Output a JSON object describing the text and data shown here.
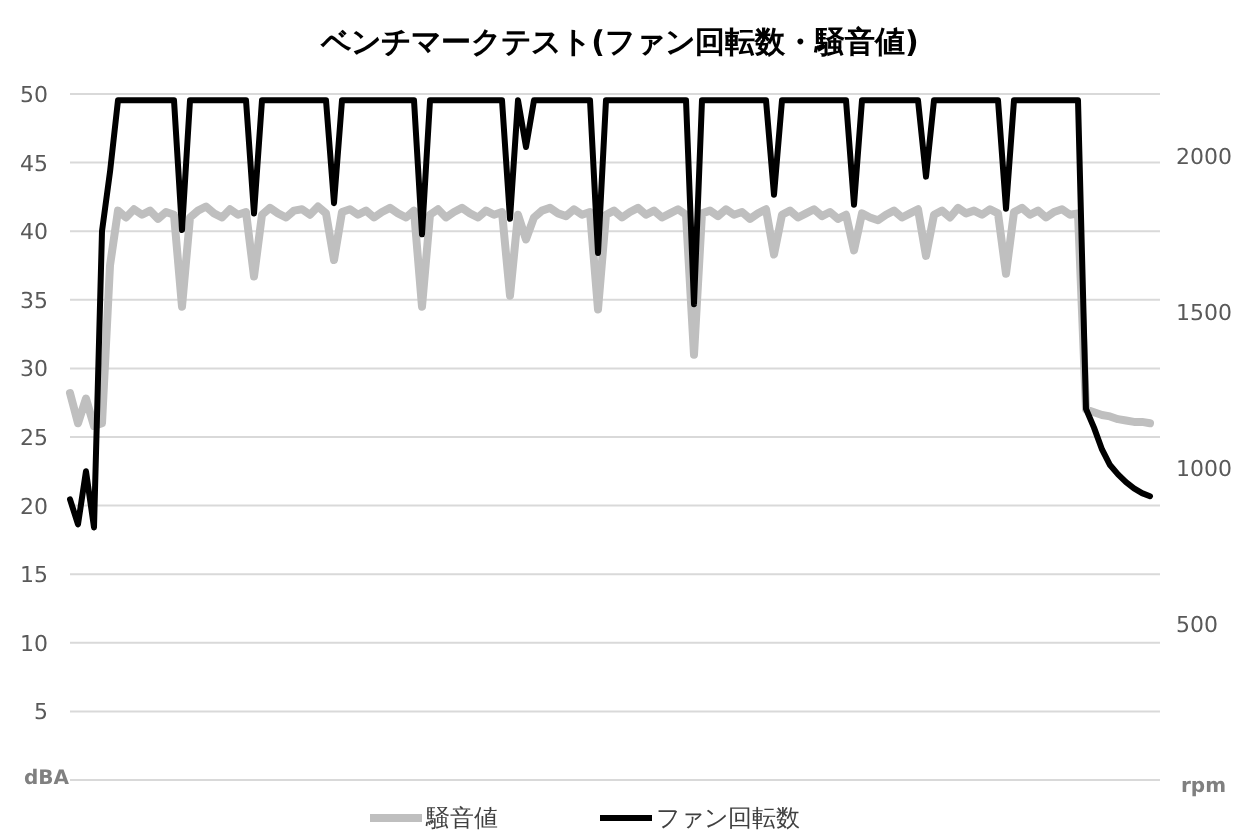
{
  "chart_data": {
    "type": "line",
    "title": "ベンチマークテスト(ファン回転数・騒音値)",
    "categories": [
      null,
      null,
      null,
      null,
      null,
      null,
      null,
      null,
      null,
      null,
      null,
      null,
      null,
      null,
      null,
      null,
      null,
      null,
      null,
      null,
      null,
      null,
      null,
      null,
      null,
      null,
      null,
      null,
      null,
      null,
      null,
      null,
      null,
      null,
      null,
      null,
      null,
      null,
      null,
      null,
      null,
      null,
      null,
      null,
      null,
      null,
      null,
      null,
      null,
      null,
      null,
      null,
      null,
      null,
      null,
      null,
      null,
      null,
      null,
      null,
      null,
      null,
      null,
      null,
      null,
      null,
      null,
      null,
      null,
      null,
      null,
      null,
      null,
      null,
      null,
      null,
      null,
      null,
      null,
      null,
      null,
      null,
      null,
      null,
      null,
      null,
      null,
      null,
      null,
      null,
      null,
      null,
      null,
      null,
      null,
      null,
      null,
      null,
      null,
      null,
      null,
      null,
      null,
      null,
      null,
      null,
      null,
      null,
      null,
      null,
      null,
      null,
      null,
      null,
      null,
      null,
      null,
      null,
      null,
      null,
      null,
      null,
      null,
      null,
      null,
      null,
      null,
      null,
      null,
      null,
      null,
      null,
      null,
      null,
      null,
      null
    ],
    "series": [
      {
        "name": "騒音値",
        "color": "#bfbfbf",
        "values": [
          28.2,
          26,
          27.8,
          25.8,
          26,
          37.5,
          41.5,
          41.0,
          41.6,
          41.2,
          41.5,
          40.9,
          41.4,
          41.2,
          34.5,
          41.0,
          41.5,
          41.8,
          41.3,
          41.0,
          41.6,
          41.2,
          41.4,
          36.7,
          41.2,
          41.7,
          41.3,
          41.0,
          41.5,
          41.6,
          41.2,
          41.8,
          41.3,
          37.9,
          41.4,
          41.6,
          41.2,
          41.5,
          41.0,
          41.4,
          41.7,
          41.3,
          41.0,
          41.5,
          34.5,
          41.2,
          41.6,
          41.0,
          41.4,
          41.7,
          41.3,
          41.0,
          41.5,
          41.2,
          41.4,
          35.3,
          41.2,
          39.4,
          41.0,
          41.5,
          41.7,
          41.3,
          41.1,
          41.6,
          41.2,
          41.4,
          34.3,
          41.2,
          41.5,
          41.0,
          41.4,
          41.7,
          41.2,
          41.5,
          41.0,
          41.3,
          41.6,
          41.2,
          31.0,
          41.3,
          41.5,
          41.1,
          41.6,
          41.2,
          41.4,
          40.9,
          41.3,
          41.6,
          38.3,
          41.2,
          41.5,
          41.0,
          41.3,
          41.6,
          41.1,
          41.4,
          40.9,
          41.2,
          38.6,
          41.3,
          41.0,
          40.8,
          41.2,
          41.5,
          41.0,
          41.3,
          41.6,
          38.2,
          41.2,
          41.5,
          41.0,
          41.7,
          41.3,
          41.5,
          41.2,
          41.6,
          41.3,
          36.9,
          41.4,
          41.7,
          41.2,
          41.5,
          41.0,
          41.4,
          41.6,
          41.2,
          41.3,
          27.0,
          26.8,
          26.6,
          26.5,
          26.3,
          26.2,
          26.1,
          26.1,
          26.0
        ]
      },
      {
        "name": "ファン回転数",
        "color": "#000000",
        "axis": "y2",
        "values": [
          900,
          820,
          990,
          810,
          1760,
          1950,
          2180,
          2180,
          2180,
          2180,
          2180,
          2180,
          2180,
          2180,
          1764,
          2180,
          2180,
          2180,
          2180,
          2180,
          2180,
          2180,
          2180,
          1817,
          2180,
          2180,
          2180,
          2180,
          2180,
          2180,
          2180,
          2180,
          2180,
          1850,
          2180,
          2180,
          2180,
          2180,
          2180,
          2180,
          2180,
          2180,
          2180,
          2180,
          1750,
          2180,
          2180,
          2180,
          2180,
          2180,
          2180,
          2180,
          2180,
          2180,
          2180,
          1800,
          2180,
          2030,
          2180,
          2180,
          2180,
          2180,
          2180,
          2180,
          2180,
          2180,
          1690,
          2180,
          2180,
          2180,
          2180,
          2180,
          2180,
          2180,
          2180,
          2180,
          2180,
          2180,
          1526,
          2180,
          2180,
          2180,
          2180,
          2180,
          2180,
          2180,
          2180,
          2180,
          1877,
          2180,
          2180,
          2180,
          2180,
          2180,
          2180,
          2180,
          2180,
          2180,
          1845,
          2180,
          2180,
          2180,
          2180,
          2180,
          2180,
          2180,
          2180,
          1935,
          2180,
          2180,
          2180,
          2180,
          2180,
          2180,
          2180,
          2180,
          2180,
          1832,
          2180,
          2180,
          2180,
          2180,
          2180,
          2180,
          2180,
          2180,
          2180,
          1190,
          1130,
          1060,
          1010,
          980,
          955,
          935,
          920,
          910
        ]
      }
    ],
    "ylim": [
      0,
      50
    ],
    "yticks": [
      5,
      10,
      15,
      20,
      25,
      30,
      35,
      40,
      45,
      50
    ],
    "y2lim": [
      0,
      2200
    ],
    "y2ticks": [
      500,
      1000,
      1500,
      2000
    ],
    "ylabel": "dBA",
    "y2label": "rpm",
    "grid": "y",
    "legend": "bottom"
  }
}
